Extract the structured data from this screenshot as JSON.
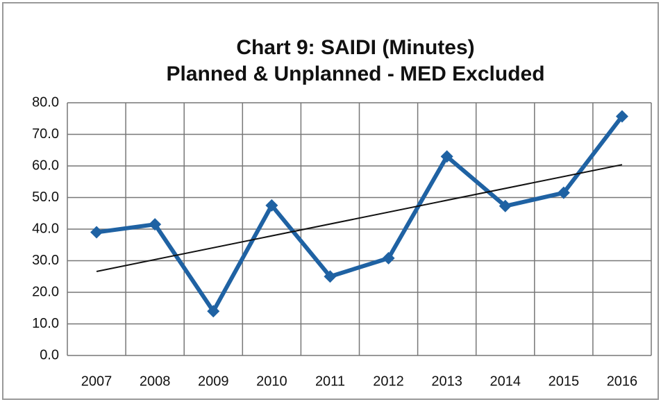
{
  "chart_data": {
    "type": "line",
    "title": [
      "Chart 9:  SAIDI (Minutes)",
      "Planned & Unplanned - MED Excluded"
    ],
    "categories": [
      "2007",
      "2008",
      "2009",
      "2010",
      "2011",
      "2012",
      "2013",
      "2014",
      "2015",
      "2016"
    ],
    "values": [
      39.0,
      41.5,
      14.0,
      47.5,
      25.0,
      30.8,
      63.0,
      47.3,
      51.5,
      75.7
    ],
    "color": "#1f62a3",
    "trendline": [
      26.6,
      60.4
    ],
    "trendline_color": "#111111",
    "ylim": [
      0,
      80
    ],
    "yticks": [
      {
        "value": 0,
        "label": "0.0"
      },
      {
        "value": 10,
        "label": "10.0"
      },
      {
        "value": 20,
        "label": "20.0"
      },
      {
        "value": 30,
        "label": "30.0"
      },
      {
        "value": 40,
        "label": "40.0"
      },
      {
        "value": 50,
        "label": "50.0"
      },
      {
        "value": 60,
        "label": "60.0"
      },
      {
        "value": 70,
        "label": "70.0"
      },
      {
        "value": 80,
        "label": "80.0"
      }
    ],
    "grid": true
  }
}
